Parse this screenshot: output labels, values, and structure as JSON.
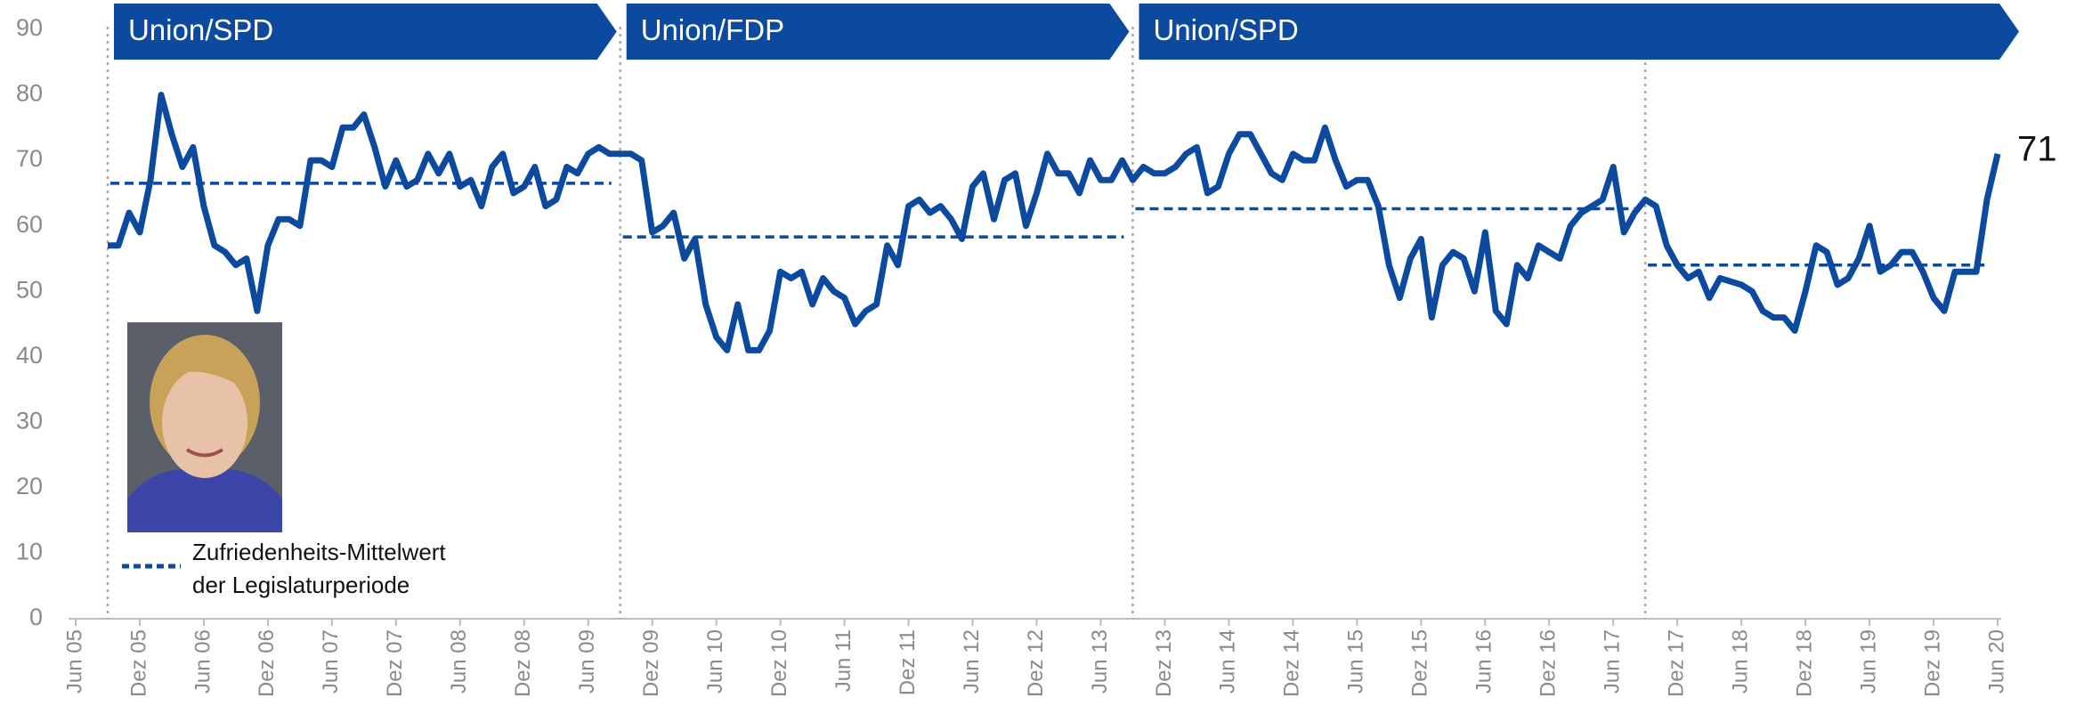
{
  "chart_data": {
    "type": "line",
    "x": [
      "2005-09",
      "2005-10",
      "2005-11",
      "2005-12",
      "2006-01",
      "2006-02",
      "2006-03",
      "2006-04",
      "2006-05",
      "2006-06",
      "2006-07",
      "2006-08",
      "2006-09",
      "2006-10",
      "2006-11",
      "2006-12",
      "2007-01",
      "2007-02",
      "2007-03",
      "2007-04",
      "2007-05",
      "2007-06",
      "2007-07",
      "2007-08",
      "2007-09",
      "2007-10",
      "2007-11",
      "2007-12",
      "2008-01",
      "2008-02",
      "2008-03",
      "2008-04",
      "2008-05",
      "2008-06",
      "2008-07",
      "2008-08",
      "2008-09",
      "2008-10",
      "2008-11",
      "2008-12",
      "2009-01",
      "2009-02",
      "2009-03",
      "2009-04",
      "2009-05",
      "2009-06",
      "2009-07",
      "2009-08",
      "2009-09",
      "2009-10",
      "2009-11",
      "2009-12",
      "2010-01",
      "2010-02",
      "2010-03",
      "2010-04",
      "2010-05",
      "2010-06",
      "2010-07",
      "2010-08",
      "2010-09",
      "2010-10",
      "2010-11",
      "2010-12",
      "2011-01",
      "2011-02",
      "2011-03",
      "2011-04",
      "2011-05",
      "2011-06",
      "2011-07",
      "2011-08",
      "2011-09",
      "2011-10",
      "2011-11",
      "2011-12",
      "2012-01",
      "2012-02",
      "2012-03",
      "2012-04",
      "2012-05",
      "2012-06",
      "2012-07",
      "2012-08",
      "2012-09",
      "2012-10",
      "2012-11",
      "2012-12",
      "2013-01",
      "2013-02",
      "2013-03",
      "2013-04",
      "2013-05",
      "2013-06",
      "2013-07",
      "2013-08",
      "2013-09",
      "2013-10",
      "2013-11",
      "2013-12",
      "2014-01",
      "2014-02",
      "2014-03",
      "2014-04",
      "2014-05",
      "2014-06",
      "2014-07",
      "2014-08",
      "2014-09",
      "2014-10",
      "2014-11",
      "2014-12",
      "2015-01",
      "2015-02",
      "2015-03",
      "2015-04",
      "2015-05",
      "2015-06",
      "2015-07",
      "2015-08",
      "2015-09",
      "2015-10",
      "2015-11",
      "2015-12",
      "2016-01",
      "2016-02",
      "2016-03",
      "2016-04",
      "2016-05",
      "2016-06",
      "2016-07",
      "2016-08",
      "2016-09",
      "2016-10",
      "2016-11",
      "2016-12",
      "2017-01",
      "2017-02",
      "2017-03",
      "2017-04",
      "2017-05",
      "2017-06",
      "2017-07",
      "2017-08",
      "2017-09",
      "2017-10",
      "2017-11",
      "2017-12",
      "2018-01",
      "2018-02",
      "2018-03",
      "2018-04",
      "2018-05",
      "2018-06",
      "2018-07",
      "2018-08",
      "2018-09",
      "2018-10",
      "2018-11",
      "2018-12",
      "2019-01",
      "2019-02",
      "2019-03",
      "2019-04",
      "2019-05",
      "2019-06",
      "2019-07",
      "2019-08",
      "2019-09",
      "2019-10",
      "2019-11",
      "2019-12",
      "2020-01",
      "2020-02",
      "2020-03",
      "2020-04",
      "2020-05",
      "2020-06"
    ],
    "series": [
      {
        "color": "#0b4a9e",
        "values": [
          57,
          57,
          62,
          59,
          67,
          80,
          74,
          69,
          72,
          63,
          57,
          56,
          54,
          55,
          47,
          57,
          61,
          61,
          60,
          70,
          70,
          69,
          75,
          75,
          77,
          72,
          66,
          70,
          66,
          67,
          71,
          68,
          71,
          66,
          67,
          63,
          69,
          71,
          65,
          66,
          69,
          63,
          64,
          69,
          68,
          71,
          72,
          71,
          71,
          71,
          70,
          59,
          60,
          62,
          55,
          58,
          48,
          43,
          41,
          48,
          41,
          41,
          44,
          53,
          52,
          53,
          48,
          52,
          50,
          49,
          45,
          47,
          48,
          57,
          54,
          63,
          64,
          62,
          63,
          61,
          58,
          66,
          68,
          61,
          67,
          68,
          60,
          65,
          71,
          68,
          68,
          65,
          70,
          67,
          67,
          70,
          67,
          69,
          68,
          68,
          69,
          71,
          72,
          65,
          66,
          71,
          74,
          74,
          71,
          68,
          67,
          71,
          70,
          70,
          75,
          70,
          66,
          67,
          67,
          63,
          54,
          49,
          55,
          58,
          46,
          54,
          56,
          55,
          50,
          59,
          47,
          45,
          54,
          52,
          57,
          56,
          55,
          60,
          62,
          63,
          64,
          69,
          59,
          62,
          64,
          63,
          57,
          54,
          52,
          53,
          49,
          52,
          51.5,
          51,
          50,
          47,
          46,
          46,
          44,
          50,
          57,
          56,
          51,
          52,
          55,
          60,
          53,
          54,
          56,
          56,
          53,
          49,
          47,
          53,
          53,
          53,
          64,
          71
        ]
      }
    ],
    "end_label_index": 177,
    "mean_series": {
      "name": [
        "Zufriedenheits-Mittelwert",
        "der Legislaturperiode"
      ],
      "color": "#0b4a9e",
      "segments": [
        {
          "start": "2005-09",
          "end": "2009-09",
          "value": 66.5
        },
        {
          "start": "2009-09",
          "end": "2013-09",
          "value": 58.3
        },
        {
          "start": "2013-09",
          "end": "2017-09",
          "value": 62.6
        },
        {
          "start": "2017-09",
          "end": "2020-06",
          "value": 54
        }
      ]
    },
    "elections": [
      "2005-09",
      "2009-09",
      "2013-09",
      "2017-09"
    ],
    "coalitions": [
      {
        "label": "Union/SPD",
        "start": "2005-09",
        "end": "2009-09"
      },
      {
        "label": "Union/FDP",
        "start": "2009-09",
        "end": "2013-09"
      },
      {
        "label": "Union/SPD",
        "start": "2013-09",
        "end": "2020-06"
      }
    ],
    "banner_color": "#0b4a9e",
    "xlim": [
      "2005-06",
      "2020-06"
    ],
    "xticks": [
      {
        "value": "2005-06",
        "label": "Jun 05"
      },
      {
        "value": "2005-12",
        "label": "Dez 05"
      },
      {
        "value": "2006-06",
        "label": "Jun 06"
      },
      {
        "value": "2006-12",
        "label": "Dez 06"
      },
      {
        "value": "2007-06",
        "label": "Jun 07"
      },
      {
        "value": "2007-12",
        "label": "Dez 07"
      },
      {
        "value": "2008-06",
        "label": "Jun 08"
      },
      {
        "value": "2008-12",
        "label": "Dez 08"
      },
      {
        "value": "2009-06",
        "label": "Jun 09"
      },
      {
        "value": "2009-12",
        "label": "Dez 09"
      },
      {
        "value": "2010-06",
        "label": "Jun 10"
      },
      {
        "value": "2010-12",
        "label": "Dez 10"
      },
      {
        "value": "2011-06",
        "label": "Jun 11"
      },
      {
        "value": "2011-12",
        "label": "Dez 11"
      },
      {
        "value": "2012-06",
        "label": "Jun 12"
      },
      {
        "value": "2012-12",
        "label": "Dez 12"
      },
      {
        "value": "2013-06",
        "label": "Jun 13"
      },
      {
        "value": "2013-12",
        "label": "Dez 13"
      },
      {
        "value": "2014-06",
        "label": "Jun 14"
      },
      {
        "value": "2014-12",
        "label": "Dez 14"
      },
      {
        "value": "2015-06",
        "label": "Jun 15"
      },
      {
        "value": "2015-12",
        "label": "Dez 15"
      },
      {
        "value": "2016-06",
        "label": "Jun 16"
      },
      {
        "value": "2016-12",
        "label": "Dez 16"
      },
      {
        "value": "2017-06",
        "label": "Jun 17"
      },
      {
        "value": "2017-12",
        "label": "Dez 17"
      },
      {
        "value": "2018-06",
        "label": "Jun 18"
      },
      {
        "value": "2018-12",
        "label": "Dez 18"
      },
      {
        "value": "2019-06",
        "label": "Jun 19"
      },
      {
        "value": "2019-12",
        "label": "Dez 19"
      },
      {
        "value": "2020-06",
        "label": "Jun 20"
      }
    ],
    "ylim": [
      0,
      90
    ],
    "yticks": [
      0,
      10,
      20,
      30,
      40,
      50,
      60,
      70,
      80,
      90
    ]
  }
}
